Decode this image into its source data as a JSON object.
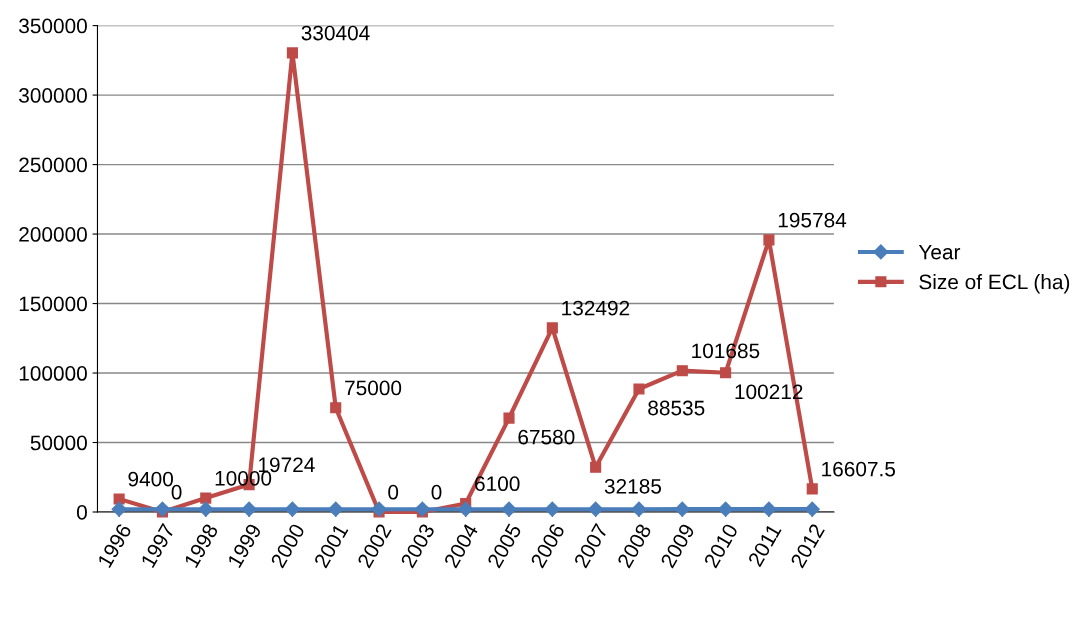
{
  "chart_data": {
    "type": "line",
    "categories": [
      "1996",
      "1997",
      "1998",
      "1999",
      "2000",
      "2001",
      "2002",
      "2003",
      "2004",
      "2005",
      "2006",
      "2007",
      "2008",
      "2009",
      "2010",
      "2011",
      "2012"
    ],
    "series": [
      {
        "name": "Year",
        "color": "#4a7ebb",
        "marker": "diamond",
        "values": [
          1996,
          1997,
          1998,
          1999,
          2000,
          2001,
          2002,
          2003,
          2004,
          2005,
          2006,
          2007,
          2008,
          2009,
          2010,
          2011,
          2012
        ]
      },
      {
        "name": "Size of ECL (ha)",
        "color": "#be4b48",
        "marker": "square",
        "values": [
          9400,
          0,
          10000,
          19724,
          330404,
          75000,
          0,
          0,
          6100,
          67580,
          132492,
          32185,
          88535,
          101685,
          100212,
          195784,
          16607.5
        ],
        "value_labels": [
          "9400",
          "0",
          "10000",
          "19724",
          "330404",
          "75000",
          "0",
          "0",
          "6100",
          "67580",
          "132492",
          "32185",
          "88535",
          "101685",
          "100212",
          "195784",
          "16607.5"
        ]
      }
    ],
    "ylim": [
      0,
      350000
    ],
    "yticks": [
      0,
      50000,
      100000,
      150000,
      200000,
      250000,
      300000,
      350000
    ],
    "grid": "y",
    "legend": "right"
  }
}
